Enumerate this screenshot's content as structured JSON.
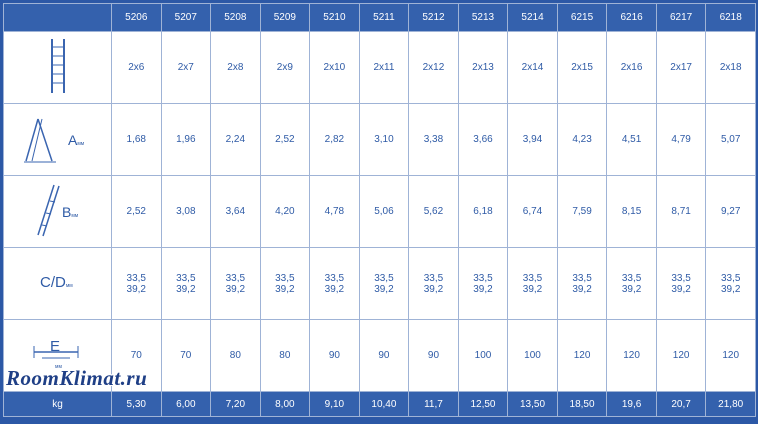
{
  "header": {
    "corner": "",
    "models": [
      "5206",
      "5207",
      "5208",
      "5209",
      "5210",
      "5211",
      "5212",
      "5213",
      "5214",
      "6215",
      "6216",
      "6217",
      "6218"
    ]
  },
  "rows": {
    "steps": {
      "icon": "ladder-front-icon",
      "values": [
        "2x6",
        "2x7",
        "2x8",
        "2x9",
        "2x10",
        "2x11",
        "2x12",
        "2x13",
        "2x14",
        "2x15",
        "2x16",
        "2x17",
        "2x18"
      ]
    },
    "a": {
      "icon": "ladder-a-frame-icon",
      "label": "A",
      "unit": "мм",
      "values": [
        "1,68",
        "1,96",
        "2,24",
        "2,52",
        "2,82",
        "3,10",
        "3,38",
        "3,66",
        "3,94",
        "4,23",
        "4,51",
        "4,79",
        "5,07"
      ]
    },
    "b": {
      "icon": "ladder-extended-icon",
      "label": "B",
      "unit": "мм",
      "values": [
        "2,52",
        "3,08",
        "3,64",
        "4,20",
        "4,78",
        "5,06",
        "5,62",
        "6,18",
        "6,74",
        "7,59",
        "8,15",
        "8,71",
        "9,27"
      ]
    },
    "cd": {
      "label": "C/D",
      "unit": "мм",
      "top": [
        "33,5",
        "33,5",
        "33,5",
        "33,5",
        "33,5",
        "33,5",
        "33,5",
        "33,5",
        "33,5",
        "33,5",
        "33,5",
        "33,5",
        "33,5"
      ],
      "bottom": [
        "39,2",
        "39,2",
        "39,2",
        "39,2",
        "39,2",
        "39,2",
        "39,2",
        "39,2",
        "39,2",
        "39,2",
        "39,2",
        "39,2",
        "39,2"
      ]
    },
    "e": {
      "icon": "ladder-base-width-icon",
      "label": "E",
      "unit": "мм",
      "values": [
        "70",
        "70",
        "80",
        "80",
        "90",
        "90",
        "90",
        "100",
        "100",
        "120",
        "120",
        "120",
        "120"
      ]
    }
  },
  "footer": {
    "label": "kg",
    "values": [
      "5,30",
      "6,00",
      "7,20",
      "8,00",
      "9,10",
      "10,40",
      "11,7",
      "12,50",
      "13,50",
      "18,50",
      "19,6",
      "20,7",
      "21,80"
    ]
  },
  "watermark": "RoomKlimat.ru",
  "colors": {
    "header_bg": "#3461ad",
    "text_blue": "#2f5ba6",
    "grid": "#9fb3d6"
  }
}
